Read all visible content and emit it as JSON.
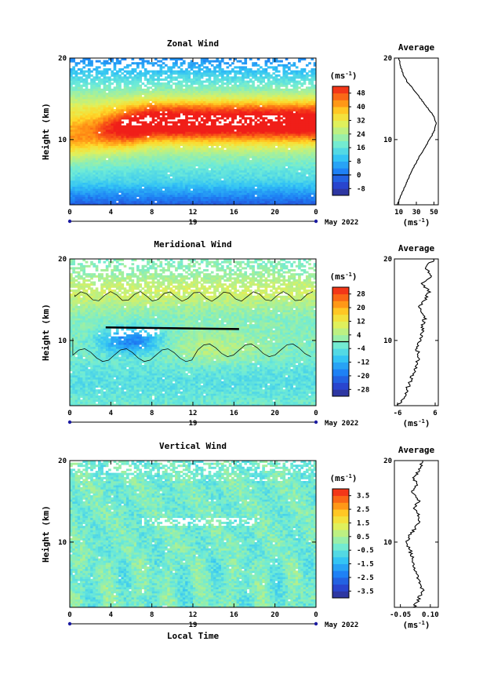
{
  "chart_data": [
    {
      "type": "heatmap",
      "title": "Zonal Wind",
      "ylabel": "Height (km)",
      "ylim": [
        2,
        20
      ],
      "xlim": [
        0,
        24
      ],
      "x_ticks": [
        "0",
        "4",
        "8",
        "12",
        "16",
        "20",
        "0"
      ],
      "y_ticks": [
        "20",
        "10"
      ],
      "date_mark": "19",
      "date_text": "May 2022",
      "colorbar": {
        "unit": "(ms",
        "unit_sup": "-1",
        "unit_close": ")",
        "ticks": [
          "48",
          "40",
          "32",
          "24",
          "16",
          "8",
          "0",
          "-8"
        ],
        "min": -12,
        "max": 52,
        "zero_line": 0
      },
      "field": {
        "core_height": 12,
        "core_value": 55,
        "core_start_hour": 4
      },
      "profile": {
        "title": "Average",
        "x_ticks": [
          "10",
          "30",
          "50"
        ],
        "xlim": [
          5,
          55
        ],
        "xunit": "(ms",
        "xunit_sup": "-1",
        "xunit_close": ")",
        "heights": [
          2,
          3,
          4,
          5,
          6,
          7,
          8,
          9,
          10,
          11,
          12,
          13,
          14,
          15,
          16,
          17,
          18,
          19,
          20
        ],
        "values": [
          8,
          12,
          16,
          20,
          24,
          29,
          34,
          40,
          45,
          50,
          53,
          49,
          42,
          35,
          28,
          20,
          15,
          12,
          10
        ]
      }
    },
    {
      "type": "heatmap",
      "title": "Meridional Wind",
      "ylabel": "Height (km)",
      "ylim": [
        2,
        20
      ],
      "xlim": [
        0,
        24
      ],
      "x_ticks": [
        "0",
        "4",
        "8",
        "12",
        "16",
        "20",
        "0"
      ],
      "y_ticks": [
        "20",
        "10"
      ],
      "date_mark": "19",
      "date_text": "May 2022",
      "colorbar": {
        "unit": "(ms",
        "unit_sup": "-1",
        "unit_close": ")",
        "ticks": [
          "28",
          "20",
          "12",
          "4",
          "-4",
          "-12",
          "-20",
          "-28"
        ],
        "min": -32,
        "max": 32,
        "zero_line": 0
      },
      "profile": {
        "title": "Average",
        "x_ticks": [
          "-6",
          "6"
        ],
        "xlim": [
          -7,
          7
        ],
        "xunit": "(ms",
        "xunit_sup": "-1",
        "xunit_close": ")",
        "heights": [
          2,
          3,
          4,
          5,
          6,
          7,
          8,
          9,
          10,
          11,
          12,
          13,
          14,
          15,
          16,
          17,
          18,
          19,
          20
        ],
        "values": [
          -6,
          -4,
          -3,
          -2,
          -1,
          0,
          1,
          0,
          1,
          2,
          2,
          3,
          1,
          3,
          4,
          2,
          5,
          3,
          6
        ]
      }
    },
    {
      "type": "heatmap",
      "title": "Vertical Wind",
      "ylabel": "Height (km)",
      "xlabel": "Local Time",
      "ylim": [
        2,
        20
      ],
      "xlim": [
        0,
        24
      ],
      "x_ticks": [
        "0",
        "4",
        "8",
        "12",
        "16",
        "20",
        "0"
      ],
      "y_ticks": [
        "20",
        "10"
      ],
      "date_mark": "19",
      "date_text": "May 2022",
      "colorbar": {
        "unit": "(ms",
        "unit_sup": "-1",
        "unit_close": ")",
        "ticks": [
          "3.5",
          "2.5",
          "1.5",
          "0.5",
          "-0.5",
          "-1.5",
          "-2.5",
          "-3.5"
        ],
        "min": -4,
        "max": 4,
        "zero_line": null
      },
      "profile": {
        "title": "Average",
        "x_ticks": [
          "-0.05",
          "0.10"
        ],
        "xlim": [
          -0.08,
          0.14
        ],
        "xunit": "(ms",
        "xunit_sup": "-1",
        "xunit_close": ")",
        "heights": [
          2,
          3,
          4,
          5,
          6,
          7,
          8,
          9,
          10,
          11,
          12,
          13,
          14,
          15,
          16,
          17,
          18,
          19,
          20
        ],
        "values": [
          0.02,
          0.04,
          0.06,
          0.05,
          0.03,
          0.02,
          0.01,
          0.0,
          -0.02,
          0.0,
          0.03,
          0.05,
          0.02,
          0.04,
          0.01,
          0.03,
          0.02,
          0.05,
          0.06
        ]
      }
    }
  ]
}
